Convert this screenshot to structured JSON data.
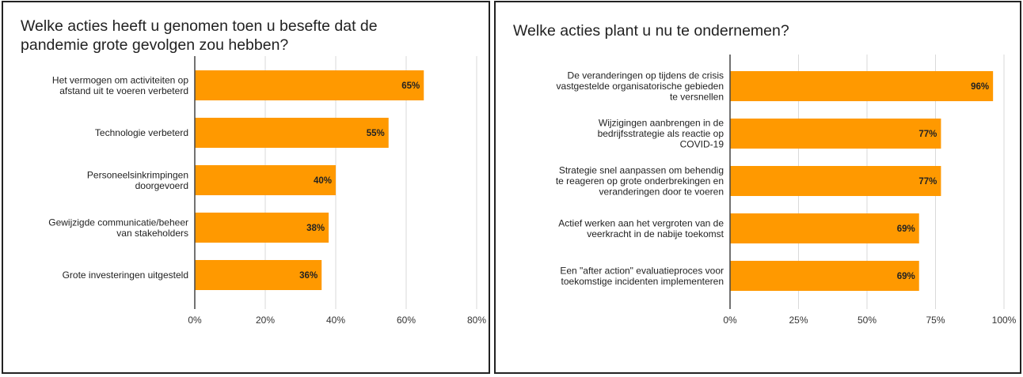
{
  "chart_data": [
    {
      "type": "bar",
      "orientation": "horizontal",
      "title_lines": [
        "Welke acties heeft u genomen toen u besefte dat de",
        "pandemie grote gevolgen zou hebben?"
      ],
      "categories": [
        [
          "Het vermogen om activiteiten op",
          "afstand uit te voeren verbeterd"
        ],
        [
          "Technologie verbeterd"
        ],
        [
          "Personeelsinkrimpingen",
          "doorgevoerd"
        ],
        [
          "Gewijzigde communicatie/beheer",
          "van stakeholders"
        ],
        [
          "Grote investeringen uitgesteld"
        ]
      ],
      "values": [
        65,
        55,
        40,
        38,
        36
      ],
      "value_labels": [
        "65%",
        "55%",
        "40%",
        "38%",
        "36%"
      ],
      "xlim": [
        0,
        80
      ],
      "ticks": [
        0,
        20,
        40,
        60,
        80
      ],
      "tick_labels": [
        "0%",
        "20%",
        "40%",
        "60%",
        "80%"
      ],
      "grid": true,
      "bar_color": "#FF9900"
    },
    {
      "type": "bar",
      "orientation": "horizontal",
      "title_lines": [
        "Welke acties plant u nu te ondernemen?"
      ],
      "categories": [
        [
          "De veranderingen op tijdens de crisis",
          "vastgestelde organisatorische gebieden",
          "te versnellen"
        ],
        [
          "Wijzigingen aanbrengen in de",
          "bedrijfsstrategie als reactie op",
          "COVID-19"
        ],
        [
          "Strategie snel aanpassen om behendig",
          "te reageren op grote onderbrekingen en",
          "veranderingen door te voeren"
        ],
        [
          "Actief werken aan het vergroten van de",
          "veerkracht in de nabije toekomst"
        ],
        [
          "Een \"after action\" evaluatieproces voor",
          "toekomstige incidenten implementeren"
        ]
      ],
      "values": [
        96,
        77,
        77,
        69,
        69
      ],
      "value_labels": [
        "96%",
        "77%",
        "77%",
        "69%",
        "69%"
      ],
      "xlim": [
        0,
        100
      ],
      "ticks": [
        0,
        25,
        50,
        75,
        100
      ],
      "tick_labels": [
        "0%",
        "25%",
        "50%",
        "75%",
        "100%"
      ],
      "grid": true,
      "bar_color": "#FF9900"
    }
  ]
}
